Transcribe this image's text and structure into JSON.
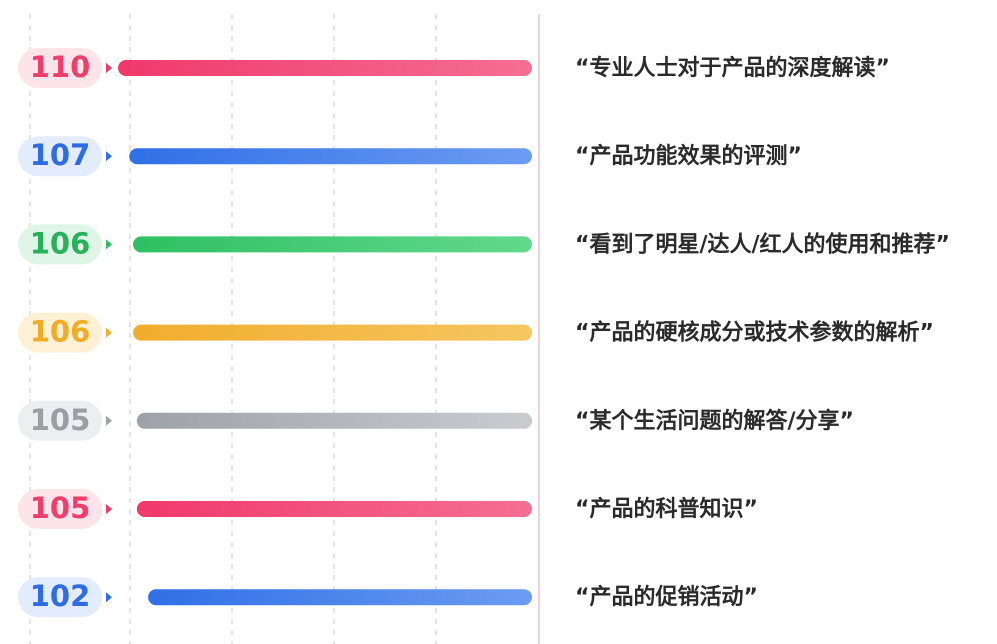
{
  "chart_data": {
    "type": "bar",
    "orientation": "horizontal",
    "grid": true,
    "categories": [
      "“专业人士对于产品的深度解读”",
      "“产品功能效果的评测”",
      "“看到了明星/达人/红人的使用和推荐”",
      "“产品的硬核成分或技术参数的解析”",
      "“某个生活问题的解答/分享”",
      "“产品的科普知识”",
      "“产品的促销活动”"
    ],
    "values": [
      110,
      107,
      106,
      106,
      105,
      105,
      102
    ],
    "value_labels": [
      "110",
      "107",
      "106",
      "106",
      "105",
      "105",
      "102"
    ],
    "colors": [
      {
        "start": "#f0396a",
        "end": "#f56f93",
        "badge_bg": "#fde4ea",
        "text": "#ef3d6c"
      },
      {
        "start": "#2f6fe6",
        "end": "#6c9cf2",
        "badge_bg": "#e2ecfd",
        "text": "#2d6ce3"
      },
      {
        "start": "#2fbf63",
        "end": "#62d98c",
        "badge_bg": "#dff6e7",
        "text": "#27b158"
      },
      {
        "start": "#f1ad2c",
        "end": "#f6c661",
        "badge_bg": "#fdf0d4",
        "text": "#f0ac27"
      },
      {
        "start": "#9ea2a8",
        "end": "#c9cbcf",
        "badge_bg": "#eceef0",
        "text": "#9a9ea5"
      },
      {
        "start": "#f0396a",
        "end": "#f56f93",
        "badge_bg": "#fde4ea",
        "text": "#ef3d6c"
      },
      {
        "start": "#2f6fe6",
        "end": "#6c9cf2",
        "badge_bg": "#e2ecfd",
        "text": "#2d6ce3"
      }
    ]
  }
}
